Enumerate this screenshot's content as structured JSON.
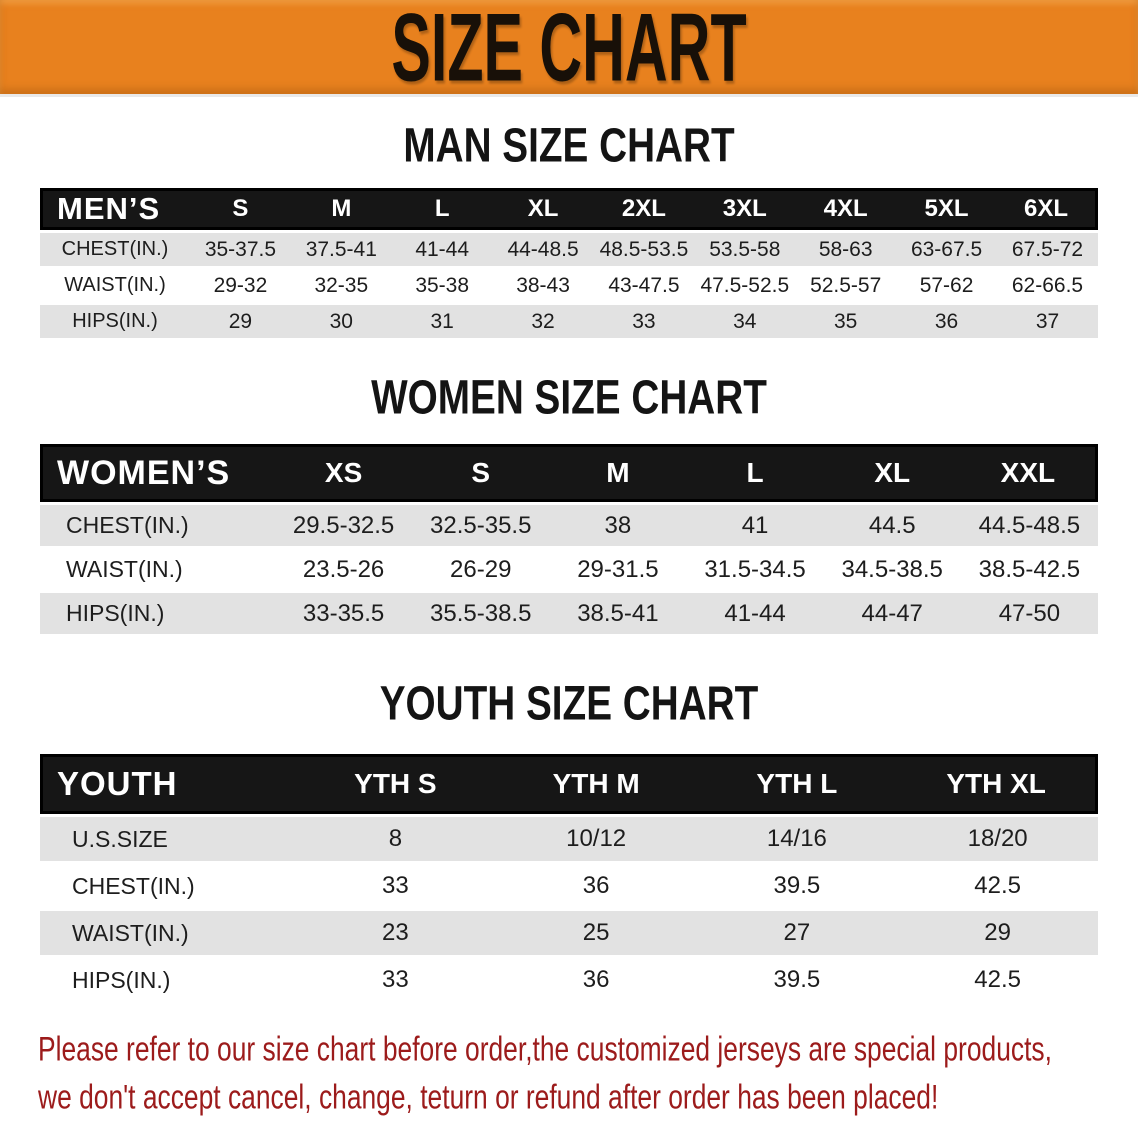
{
  "banner": {
    "title": "SIZE CHART",
    "bg_color": "#e8811e",
    "text_color": "#181008"
  },
  "sections": [
    {
      "heading": "MAN SIZE CHART",
      "table": {
        "header": [
          "MEN’S",
          "S",
          "M",
          "L",
          "XL",
          "2XL",
          "3XL",
          "4XL",
          "5XL",
          "6XL"
        ],
        "rows": [
          [
            "CHEST(IN.)",
            "35-37.5",
            "37.5-41",
            "41-44",
            "44-48.5",
            "48.5-53.5",
            "53.5-58",
            "58-63",
            "63-67.5",
            "67.5-72"
          ],
          [
            "WAIST(IN.)",
            "29-32",
            "32-35",
            "35-38",
            "38-43",
            "43-47.5",
            "47.5-52.5",
            "52.5-57",
            "57-62",
            "62-66.5"
          ],
          [
            "HIPS(IN.)",
            "29",
            "30",
            "31",
            "32",
            "33",
            "34",
            "35",
            "36",
            "37"
          ]
        ]
      }
    },
    {
      "heading": "WOMEN SIZE CHART",
      "table": {
        "header": [
          "WOMEN’S",
          "XS",
          "S",
          "M",
          "L",
          "XL",
          "XXL"
        ],
        "rows": [
          [
            "CHEST(IN.)",
            "29.5-32.5",
            "32.5-35.5",
            "38",
            "41",
            "44.5",
            "44.5-48.5"
          ],
          [
            "WAIST(IN.)",
            "23.5-26",
            "26-29",
            "29-31.5",
            "31.5-34.5",
            "34.5-38.5",
            "38.5-42.5"
          ],
          [
            "HIPS(IN.)",
            "33-35.5",
            "35.5-38.5",
            "38.5-41",
            "41-44",
            "44-47",
            "47-50"
          ]
        ]
      }
    },
    {
      "heading": "YOUTH SIZE CHART",
      "table": {
        "header": [
          "YOUTH",
          "YTH S",
          "YTH M",
          "YTH L",
          "YTH XL"
        ],
        "rows": [
          [
            "U.S.SIZE",
            "8",
            "10/12",
            "14/16",
            "18/20"
          ],
          [
            "CHEST(IN.)",
            "33",
            "36",
            "39.5",
            "42.5"
          ],
          [
            "WAIST(IN.)",
            "23",
            "25",
            "27",
            "29"
          ],
          [
            "HIPS(IN.)",
            "33",
            "36",
            "39.5",
            "42.5"
          ]
        ]
      }
    }
  ],
  "disclaimer": {
    "line1": "Please refer to our size chart before order,the customized jerseys are special products,",
    "line2": "we don't accept cancel, change, teturn or refund after order has been placed!",
    "color": "#9c1b1b"
  }
}
